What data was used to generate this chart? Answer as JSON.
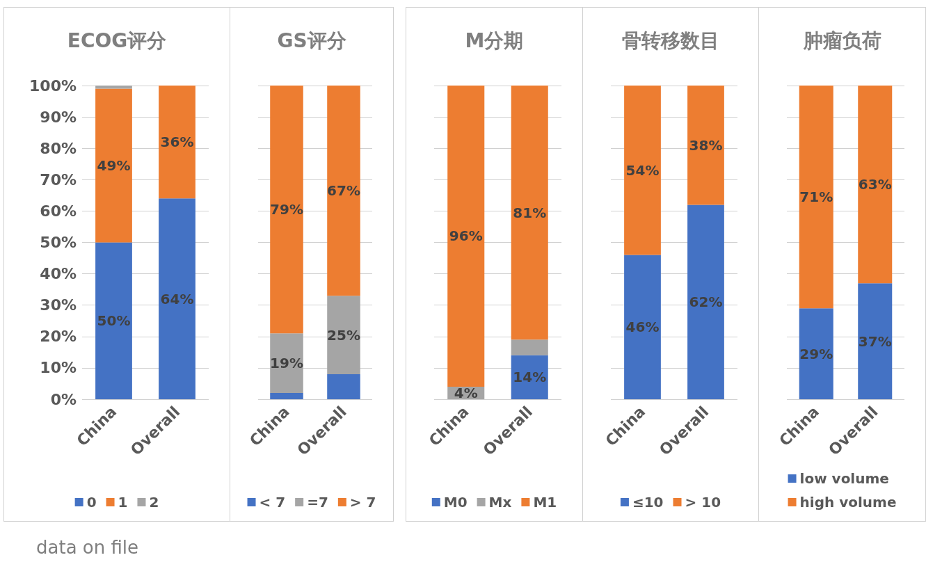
{
  "chart_data": [
    {
      "type": "bar",
      "title": "ECOG评分",
      "stacked": true,
      "categories": [
        "China",
        "Overall"
      ],
      "ylim": [
        0,
        100
      ],
      "yticks": [
        {
          "value": 0,
          "label": "0%"
        },
        {
          "value": 10,
          "label": "10%"
        },
        {
          "value": 20,
          "label": "20%"
        },
        {
          "value": 30,
          "label": "30%"
        },
        {
          "value": 40,
          "label": "40%"
        },
        {
          "value": 50,
          "label": "50%"
        },
        {
          "value": 60,
          "label": "60%"
        },
        {
          "value": 70,
          "label": "70%"
        },
        {
          "value": 80,
          "label": "80%"
        },
        {
          "value": 90,
          "label": "90%"
        },
        {
          "value": 100,
          "label": "100%"
        }
      ],
      "grid": "y",
      "legend": "bottom",
      "annotations": [
        "data on file"
      ],
      "series": [
        {
          "name": "0",
          "color": "#4472c4",
          "values": [
            50,
            64
          ],
          "value_labels": [
            "50%",
            "64%"
          ]
        },
        {
          "name": "1",
          "color": "#ed7d31",
          "values": [
            49,
            36
          ],
          "value_labels": [
            "49%",
            "36%"
          ]
        },
        {
          "name": "2",
          "color": "#a5a5a5",
          "values": [
            1,
            0
          ],
          "value_labels": [
            null,
            null
          ]
        }
      ]
    },
    {
      "type": "bar",
      "title": "GS评分",
      "stacked": true,
      "categories": [
        "China",
        "Overall"
      ],
      "ylim": [
        0,
        100
      ],
      "yticks": [
        0,
        10,
        20,
        30,
        40,
        50,
        60,
        70,
        80,
        90,
        100
      ],
      "tick_labels": "x",
      "grid": "y",
      "legend": "bottom",
      "series": [
        {
          "name": "< 7",
          "color": "#4472c4",
          "values": [
            2,
            8
          ],
          "value_labels": [
            null,
            null
          ]
        },
        {
          "name": "=7",
          "color": "#a5a5a5",
          "values": [
            19,
            25
          ],
          "value_labels": [
            "19%",
            "25%"
          ]
        },
        {
          "name": "> 7",
          "color": "#ed7d31",
          "values": [
            79,
            67
          ],
          "value_labels": [
            "79%",
            "67%"
          ]
        }
      ]
    },
    {
      "type": "bar",
      "title": "M分期",
      "stacked": true,
      "categories": [
        "China",
        "Overall"
      ],
      "ylim": [
        0,
        100
      ],
      "yticks": [
        0,
        10,
        20,
        30,
        40,
        50,
        60,
        70,
        80,
        90,
        100
      ],
      "tick_labels": "x",
      "grid": "y",
      "legend": "bottom",
      "series": [
        {
          "name": "M0",
          "color": "#4472c4",
          "values": [
            0,
            14
          ],
          "value_labels": [
            null,
            "14%"
          ]
        },
        {
          "name": "Mx",
          "color": "#a5a5a5",
          "values": [
            4,
            5
          ],
          "value_labels": [
            "4%",
            null
          ]
        },
        {
          "name": "M1",
          "color": "#ed7d31",
          "values": [
            96,
            81
          ],
          "value_labels": [
            "96%",
            "81%"
          ]
        }
      ]
    },
    {
      "type": "bar",
      "title": "骨转移数目",
      "stacked": true,
      "categories": [
        "China",
        "Overall"
      ],
      "ylim": [
        0,
        100
      ],
      "yticks": [
        0,
        10,
        20,
        30,
        40,
        50,
        60,
        70,
        80,
        90,
        100
      ],
      "tick_labels": "x",
      "grid": "y",
      "legend": "bottom",
      "series": [
        {
          "name": "≤10",
          "color": "#4472c4",
          "values": [
            46,
            62
          ],
          "value_labels": [
            "46%",
            "62%"
          ]
        },
        {
          "name": "> 10",
          "color": "#ed7d31",
          "values": [
            54,
            38
          ],
          "value_labels": [
            "54%",
            "38%"
          ]
        }
      ]
    },
    {
      "type": "bar",
      "title": "肿瘤负荷",
      "stacked": true,
      "categories": [
        "China",
        "Overall"
      ],
      "ylim": [
        0,
        100
      ],
      "yticks": [
        0,
        10,
        20,
        30,
        40,
        50,
        60,
        70,
        80,
        90,
        100
      ],
      "tick_labels": "x",
      "grid": "y",
      "legend": "bottom",
      "series": [
        {
          "name": "low volume",
          "color": "#4472c4",
          "values": [
            29,
            37
          ],
          "value_labels": [
            "29%",
            "37%"
          ]
        },
        {
          "name": "high volume",
          "color": "#ed7d31",
          "values": [
            71,
            63
          ],
          "value_labels": [
            "71%",
            "63%"
          ]
        }
      ]
    }
  ]
}
